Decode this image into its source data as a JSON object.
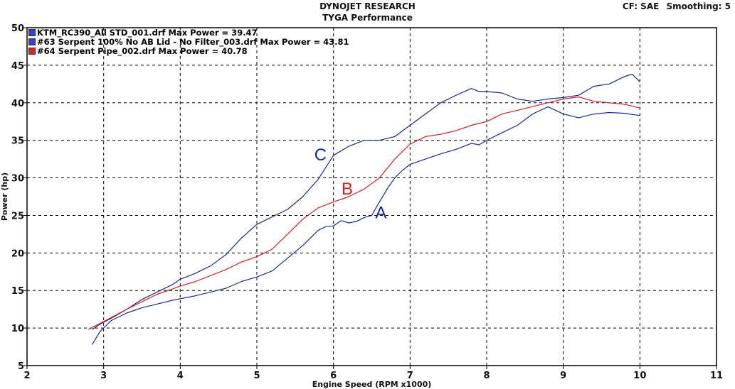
{
  "header": {
    "title": "DYNOJET RESEARCH",
    "subtitle": "TYGA Performance",
    "cf": "CF: SAE",
    "smoothing": "Smoothing: 5"
  },
  "legend": [
    {
      "label": "KTM_RC390_All STD_001.drf Max Power = 39.47",
      "color": "#3344cc"
    },
    {
      "label": "#63 Serpent 100% No AB Lid - No Filter_003.drf Max Power = 43.81",
      "color": "#3344cc"
    },
    {
      "label": "#64 Serpent Pipe_002.drf Max Power = 40.78",
      "color": "#dd2222"
    }
  ],
  "chart_data": {
    "type": "line",
    "xlabel": "Engine Speed (RPM x1000)",
    "ylabel": "Power (hp)",
    "xlim": [
      2,
      11
    ],
    "ylim": [
      5,
      50
    ],
    "xticks": [
      2,
      3,
      4,
      5,
      6,
      7,
      8,
      9,
      10,
      11
    ],
    "yticks": [
      5,
      10,
      15,
      20,
      25,
      30,
      35,
      40,
      45,
      50
    ],
    "grid": true,
    "legend_position": "top-left",
    "annotations": [
      {
        "text": "A",
        "x": 6.62,
        "y": 24.6,
        "color": "#1a2a99"
      },
      {
        "text": "B",
        "x": 6.18,
        "y": 27.8,
        "color": "#cc2222"
      },
      {
        "text": "C",
        "x": 5.83,
        "y": 32.3,
        "color": "#1a2a99"
      }
    ],
    "series": [
      {
        "name": "KTM_RC390_All STD_001.drf",
        "color": "#1a2aa0",
        "x": [
          2.85,
          2.95,
          3.1,
          3.3,
          3.5,
          3.7,
          3.9,
          4.0,
          4.2,
          4.4,
          4.6,
          4.8,
          5.0,
          5.2,
          5.4,
          5.6,
          5.8,
          5.9,
          6.0,
          6.1,
          6.2,
          6.3,
          6.4,
          6.5,
          6.6,
          6.7,
          6.8,
          6.9,
          7.0,
          7.2,
          7.4,
          7.6,
          7.8,
          7.9,
          8.0,
          8.2,
          8.4,
          8.6,
          8.8,
          8.9,
          9.0,
          9.2,
          9.4,
          9.6,
          9.8,
          10.0
        ],
        "y": [
          7.8,
          9.5,
          11.0,
          12.0,
          12.7,
          13.2,
          13.7,
          13.9,
          14.3,
          14.8,
          15.3,
          16.2,
          16.8,
          17.6,
          19.3,
          21.0,
          23.0,
          23.5,
          23.6,
          24.3,
          24.0,
          24.2,
          24.7,
          25.0,
          26.8,
          28.5,
          30.0,
          31.0,
          31.8,
          32.5,
          33.2,
          33.8,
          34.6,
          34.4,
          35.0,
          36.0,
          37.0,
          38.5,
          39.47,
          39.0,
          38.5,
          38.0,
          38.5,
          38.7,
          38.6,
          38.3
        ]
      },
      {
        "name": "#63 Serpent 100% No AB Lid - No Filter_003.drf",
        "color": "#1a2a88",
        "x": [
          2.85,
          2.95,
          3.1,
          3.3,
          3.5,
          3.7,
          3.9,
          4.0,
          4.2,
          4.4,
          4.6,
          4.8,
          5.0,
          5.2,
          5.4,
          5.6,
          5.8,
          6.0,
          6.2,
          6.4,
          6.6,
          6.8,
          7.0,
          7.2,
          7.4,
          7.6,
          7.8,
          7.9,
          8.0,
          8.2,
          8.4,
          8.6,
          8.8,
          9.0,
          9.2,
          9.4,
          9.6,
          9.8,
          9.9,
          10.0
        ],
        "y": [
          9.8,
          10.5,
          11.3,
          12.5,
          13.8,
          14.8,
          15.8,
          16.5,
          17.3,
          18.3,
          19.8,
          22.0,
          23.8,
          24.8,
          25.8,
          27.5,
          29.8,
          33.0,
          34.2,
          35.0,
          35.0,
          35.5,
          37.0,
          38.5,
          40.0,
          41.0,
          41.9,
          41.5,
          41.5,
          41.3,
          40.5,
          40.2,
          40.5,
          40.7,
          41.0,
          42.2,
          42.5,
          43.5,
          43.81,
          42.8
        ]
      },
      {
        "name": "#64 Serpent Pipe_002.drf",
        "color": "#cc2222",
        "x": [
          2.8,
          2.95,
          3.1,
          3.3,
          3.5,
          3.7,
          3.9,
          4.0,
          4.2,
          4.4,
          4.6,
          4.8,
          5.0,
          5.2,
          5.4,
          5.6,
          5.8,
          6.0,
          6.2,
          6.4,
          6.6,
          6.8,
          7.0,
          7.2,
          7.4,
          7.6,
          7.8,
          8.0,
          8.2,
          8.4,
          8.6,
          8.8,
          9.0,
          9.2,
          9.4,
          9.6,
          9.8,
          10.0
        ],
        "y": [
          9.8,
          10.6,
          11.4,
          12.5,
          13.5,
          14.5,
          15.2,
          15.6,
          16.2,
          17.0,
          17.8,
          18.8,
          19.5,
          20.5,
          22.5,
          24.5,
          26.0,
          26.8,
          27.5,
          28.5,
          30.0,
          32.5,
          34.5,
          35.5,
          35.8,
          36.3,
          37.0,
          37.5,
          38.5,
          39.0,
          39.5,
          40.0,
          40.5,
          40.78,
          40.2,
          40.0,
          39.8,
          39.3
        ]
      }
    ]
  }
}
